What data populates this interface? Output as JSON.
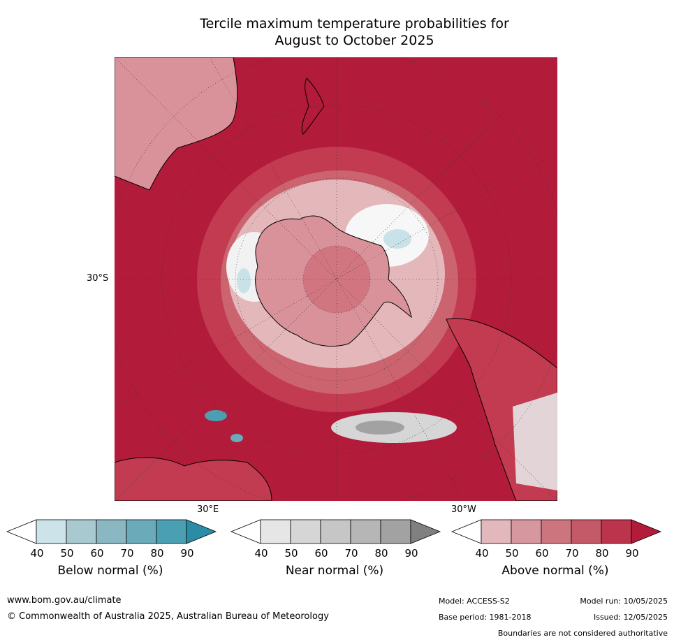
{
  "title": {
    "line1": "Tercile maximum temperature probabilities for",
    "line2": "August to October 2025"
  },
  "map": {
    "projection": "south polar stereographic",
    "lat_label": "30°S",
    "lon_labels": [
      "30°E",
      "30°W"
    ],
    "colors": {
      "ocean_above_90": "#b31b3a",
      "above_80": "#c23b50",
      "above_70": "#cc6470",
      "above_60": "#d9929a",
      "above_50": "#e4b7bb",
      "near_normal_light": "#e6e6e6",
      "below_light": "#c9e2e8",
      "coast": "#000000"
    }
  },
  "colorbars": [
    {
      "label": "Below normal (%)",
      "ticks": [
        "40",
        "50",
        "60",
        "70",
        "80",
        "90"
      ],
      "colors": [
        "#ffffff",
        "#cbe3e9",
        "#a8c9cf",
        "#8ab7c2",
        "#6aaab9",
        "#4aa0b2",
        "#2b8da5"
      ]
    },
    {
      "label": "Near normal (%)",
      "ticks": [
        "40",
        "50",
        "60",
        "70",
        "80",
        "90"
      ],
      "colors": [
        "#ffffff",
        "#e6e6e6",
        "#d6d6d6",
        "#c6c6c6",
        "#b6b6b6",
        "#a2a2a2",
        "#808080"
      ]
    },
    {
      "label": "Above normal (%)",
      "ticks": [
        "40",
        "50",
        "60",
        "70",
        "80",
        "90"
      ],
      "colors": [
        "#ffffff",
        "#e3b8bc",
        "#d7979e",
        "#cc757f",
        "#c45a67",
        "#bb344b",
        "#b31b3a"
      ]
    }
  ],
  "footer": {
    "url": "www.bom.gov.au/climate",
    "copyright": "© Commonwealth of Australia 2025, Australian Bureau of Meteorology",
    "model": "Model: ACCESS-S2",
    "model_run": "Model run: 10/05/2025",
    "base_period": "Base period: 1981-2018",
    "issued": "Issued: 12/05/2025",
    "disclaimer": "Boundaries are not considered authoritative"
  }
}
